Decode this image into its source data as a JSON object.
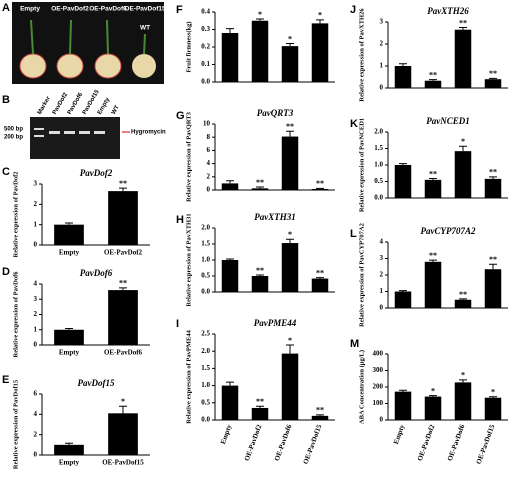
{
  "photo": {
    "panel": "A",
    "labels": [
      "Empty",
      "OE-PavDof2",
      "OE-PavDof6",
      "OE-PavDof15"
    ],
    "wt": "WT"
  },
  "gel": {
    "panel": "B",
    "lanes": [
      "Marker",
      "PavDof2",
      "PavDof6",
      "PavDof15",
      "Empty",
      "WT"
    ],
    "markers": [
      "500 bp",
      "200 bp"
    ],
    "band": "Hygromycin"
  },
  "chart_data": [
    {
      "type": "bar",
      "panel": "C",
      "title": "PavDof2",
      "ylabel": "Relative expression of PavDof2",
      "categories": [
        "Empty",
        "OE-PavDof2"
      ],
      "values": [
        1.0,
        2.65
      ],
      "errors": [
        0.08,
        0.15
      ],
      "significance": [
        null,
        "**"
      ],
      "ylim": [
        0,
        3
      ],
      "yticks": [
        0,
        1,
        2,
        3
      ],
      "color": "#000000"
    },
    {
      "type": "bar",
      "panel": "D",
      "title": "PavDof6",
      "ylabel": "Relative expression of PavDof6",
      "categories": [
        "Empty",
        "OE-PavDof6"
      ],
      "values": [
        1.0,
        3.6
      ],
      "errors": [
        0.08,
        0.15
      ],
      "significance": [
        null,
        "**"
      ],
      "ylim": [
        0,
        4
      ],
      "yticks": [
        0,
        1,
        2,
        3,
        4
      ],
      "color": "#000000"
    },
    {
      "type": "bar",
      "panel": "E",
      "title": "PavDof15",
      "ylabel": "Relative expression of PavDof15",
      "categories": [
        "Empty",
        "OE-PavDof15"
      ],
      "values": [
        1.0,
        4.1
      ],
      "errors": [
        0.15,
        0.7
      ],
      "significance": [
        null,
        "*"
      ],
      "ylim": [
        0,
        6
      ],
      "yticks": [
        0,
        2,
        4,
        6
      ],
      "color": "#000000"
    },
    {
      "type": "bar",
      "panel": "F",
      "ylabel": "Fruit firmness(kg)",
      "categories": [
        null,
        null,
        null,
        null
      ],
      "values": [
        0.28,
        0.35,
        0.205,
        0.335
      ],
      "errors": [
        0.025,
        0.01,
        0.015,
        0.02
      ],
      "significance": [
        null,
        "*",
        "*",
        "*"
      ],
      "ylim": [
        0,
        0.4
      ],
      "yticks": [
        {
          "value": 0,
          "label": "0.0"
        },
        0.1,
        0.2,
        0.3,
        0.4
      ],
      "color": "#000000"
    },
    {
      "type": "bar",
      "panel": "G",
      "title": "PavQRT3",
      "ylabel": "Relative expression of PavQRT3",
      "categories": [
        null,
        null,
        null,
        null
      ],
      "values": [
        1.0,
        0.25,
        8.1,
        0.15
      ],
      "errors": [
        0.4,
        0.2,
        0.8,
        0.1
      ],
      "significance": [
        null,
        "**",
        "**",
        "**"
      ],
      "ylim": [
        0,
        10
      ],
      "yticks": [
        0,
        2,
        4,
        6,
        8,
        10
      ],
      "color": "#000000"
    },
    {
      "type": "bar",
      "panel": "H",
      "title": "PavXTH31",
      "ylabel": "Relative expression of PavXTH31",
      "categories": [
        null,
        null,
        null,
        null
      ],
      "values": [
        1.0,
        0.5,
        1.53,
        0.42
      ],
      "errors": [
        0.03,
        0.03,
        0.12,
        0.03
      ],
      "significance": [
        null,
        "**",
        "*",
        "**"
      ],
      "ylim": [
        0,
        2
      ],
      "yticks": [
        {
          "value": 0,
          "label": "0.0"
        },
        0.5,
        {
          "value": 1,
          "label": "1.0"
        },
        1.5,
        {
          "value": 2,
          "label": "2.0"
        }
      ],
      "color": "#000000"
    },
    {
      "type": "bar",
      "panel": "I",
      "title": "PavPME44",
      "ylabel": "Relative expression of PavPME44",
      "categories": [
        "Empty",
        "OE-PavDof2",
        "OE-PavDof6",
        "OE-PavDof15"
      ],
      "values": [
        1.0,
        0.35,
        1.93,
        0.12
      ],
      "errors": [
        0.1,
        0.05,
        0.25,
        0.03
      ],
      "significance": [
        null,
        "**",
        "*",
        "**"
      ],
      "ylim": [
        0,
        2.5
      ],
      "yticks": [
        {
          "value": 0,
          "label": "0.0"
        },
        0.5,
        {
          "value": 1,
          "label": "1.0"
        },
        1.5,
        {
          "value": 2,
          "label": "2.0"
        },
        2.5
      ],
      "color": "#000000"
    },
    {
      "type": "bar",
      "panel": "J",
      "title": "PavXTH26",
      "ylabel": "Relative expression of PavXTH26",
      "categories": [
        null,
        null,
        null,
        null
      ],
      "values": [
        1.0,
        0.33,
        2.65,
        0.4
      ],
      "errors": [
        0.1,
        0.05,
        0.1,
        0.04
      ],
      "significance": [
        null,
        "**",
        "**",
        "**"
      ],
      "ylim": [
        0,
        3
      ],
      "yticks": [
        0,
        1,
        2,
        3
      ],
      "color": "#000000"
    },
    {
      "type": "bar",
      "panel": "K",
      "title": "PavNCED1",
      "ylabel": "Relative expression of PavNCED1",
      "categories": [
        null,
        null,
        null,
        null
      ],
      "values": [
        1.0,
        0.55,
        1.42,
        0.58
      ],
      "errors": [
        0.04,
        0.04,
        0.15,
        0.06
      ],
      "significance": [
        null,
        "**",
        "*",
        "**"
      ],
      "ylim": [
        0,
        2
      ],
      "yticks": [
        {
          "value": 0,
          "label": "0.0"
        },
        0.5,
        {
          "value": 1,
          "label": "1.0"
        },
        1.5,
        {
          "value": 2,
          "label": "2.0"
        }
      ],
      "color": "#000000"
    },
    {
      "type": "bar",
      "panel": "L",
      "title": "PavCYP707A2",
      "ylabel": "Relative expression of PavCYP707A2",
      "categories": [
        null,
        null,
        null,
        null
      ],
      "values": [
        1.0,
        2.8,
        0.5,
        2.35
      ],
      "errors": [
        0.05,
        0.1,
        0.05,
        0.3
      ],
      "significance": [
        null,
        "**",
        "**",
        "**"
      ],
      "ylim": [
        0,
        4
      ],
      "yticks": [
        0,
        1,
        2,
        3,
        4
      ],
      "color": "#000000"
    },
    {
      "type": "bar",
      "panel": "M",
      "ylabel": "ABA Concentration (μg/L)",
      "categories": [
        "Empty",
        "OE-PavDof2",
        "OE-PavDof6",
        "OE-PavDof15"
      ],
      "values": [
        172,
        142,
        228,
        135
      ],
      "errors": [
        8,
        6,
        15,
        6
      ],
      "significance": [
        null,
        "*",
        "*",
        "*"
      ],
      "ylim": [
        0,
        400
      ],
      "yticks": [
        0,
        100,
        200,
        300,
        400
      ],
      "color": "#000000"
    }
  ]
}
